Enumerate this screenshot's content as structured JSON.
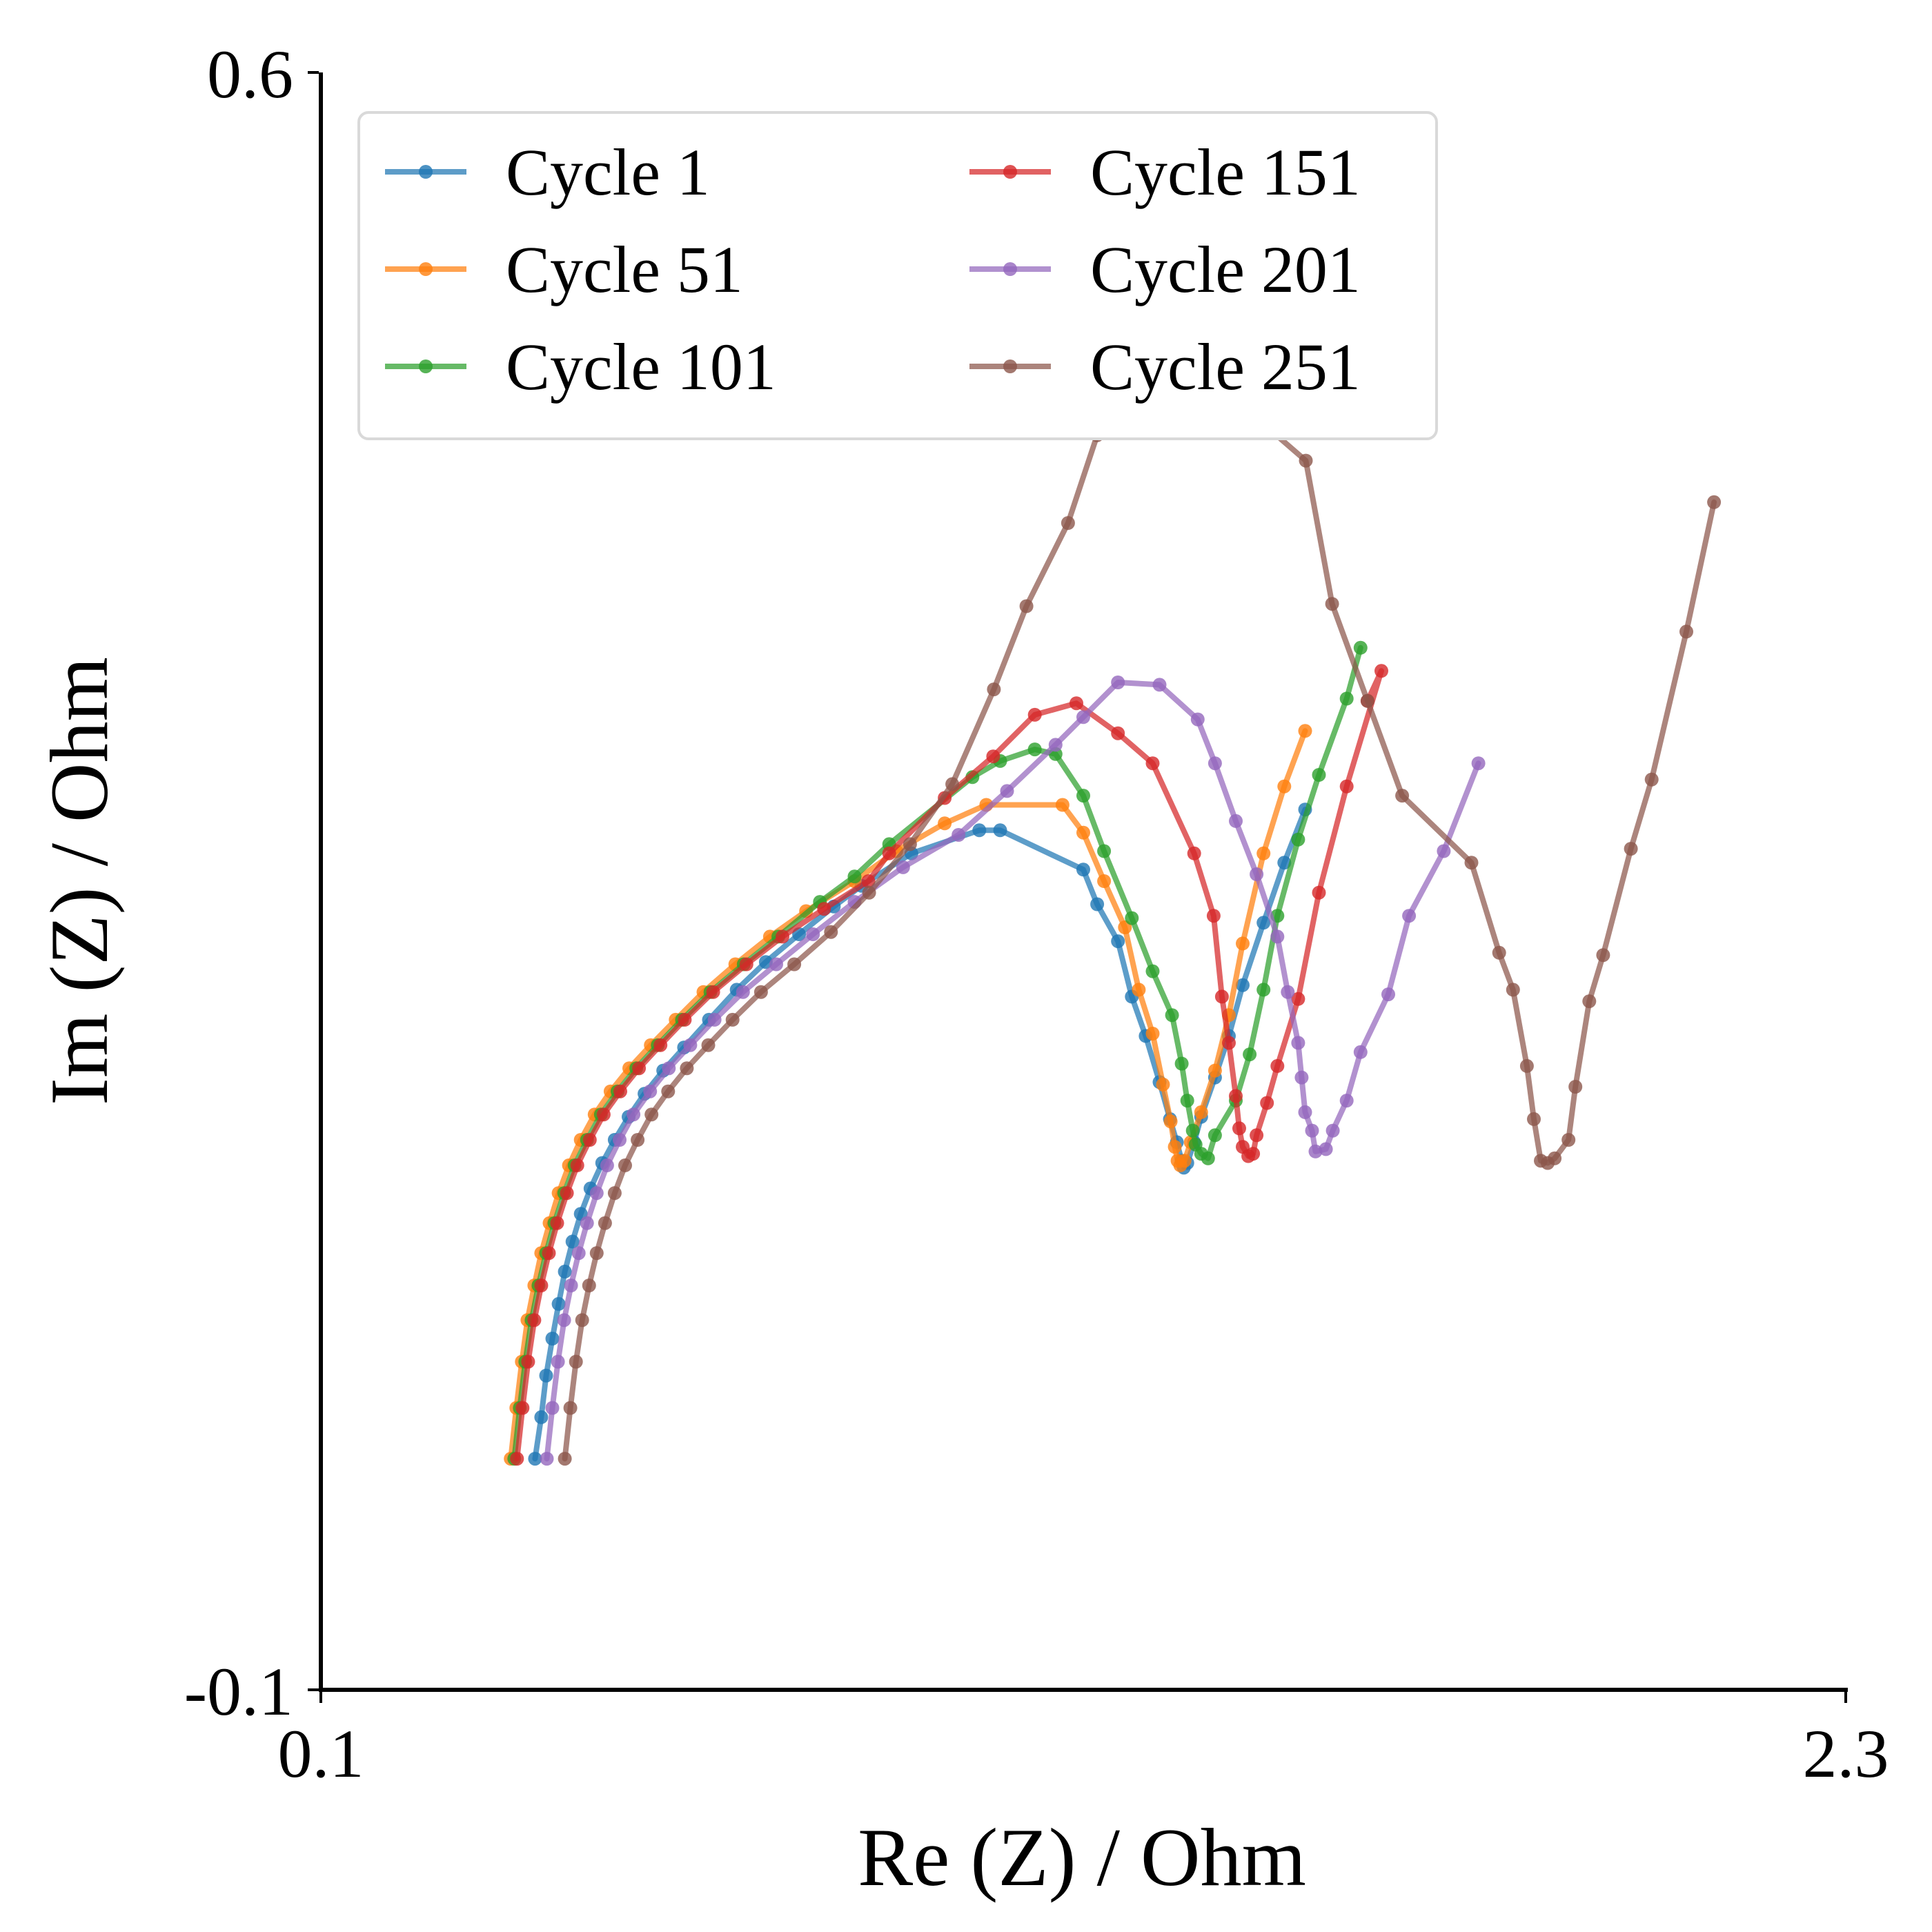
{
  "chart_data": {
    "type": "line",
    "title": "",
    "xlabel": "Re (Z) / Ohm",
    "ylabel": "Im (Z) / Ohm",
    "xlim": [
      0.1,
      2.3
    ],
    "ylim": [
      -0.1,
      0.6
    ],
    "x_ticks": [
      "0.1",
      "2.3"
    ],
    "y_ticks": [
      "-0.1",
      "0.6"
    ],
    "grid": false,
    "legend": {
      "placement": "top-left",
      "columns": 2
    },
    "series": [
      {
        "name": "Cycle 1",
        "color": "#1f77b4",
        "x": [
          0.409,
          0.418,
          0.425,
          0.434,
          0.443,
          0.452,
          0.463,
          0.475,
          0.489,
          0.506,
          0.524,
          0.544,
          0.567,
          0.594,
          0.624,
          0.66,
          0.7,
          0.742,
          0.79,
          0.84,
          0.88,
          0.952,
          1.05,
          1.08,
          1.2,
          1.22,
          1.25,
          1.27,
          1.29,
          1.31,
          1.325,
          1.335,
          1.342,
          1.345,
          1.35,
          1.36,
          1.37,
          1.39,
          1.41,
          1.43,
          1.46,
          1.49,
          1.52
        ],
        "y": [
          0.0,
          0.018,
          0.036,
          0.052,
          0.067,
          0.081,
          0.094,
          0.106,
          0.117,
          0.128,
          0.138,
          0.148,
          0.158,
          0.168,
          0.178,
          0.19,
          0.203,
          0.215,
          0.227,
          0.239,
          0.248,
          0.262,
          0.272,
          0.272,
          0.255,
          0.24,
          0.224,
          0.2,
          0.183,
          0.163,
          0.147,
          0.137,
          0.129,
          0.126,
          0.128,
          0.137,
          0.148,
          0.165,
          0.183,
          0.205,
          0.232,
          0.258,
          0.281
        ]
      },
      {
        "name": "Cycle 51",
        "color": "#ff7f0e",
        "x": [
          0.374,
          0.382,
          0.39,
          0.398,
          0.408,
          0.418,
          0.43,
          0.443,
          0.458,
          0.475,
          0.495,
          0.518,
          0.545,
          0.576,
          0.612,
          0.652,
          0.698,
          0.748,
          0.8,
          0.87,
          0.93,
          1.0,
          1.06,
          1.17,
          1.2,
          1.23,
          1.26,
          1.28,
          1.3,
          1.315,
          1.326,
          1.332,
          1.336,
          1.34,
          1.346,
          1.355,
          1.37,
          1.39,
          1.41,
          1.43,
          1.46,
          1.49,
          1.52
        ],
        "y": [
          0.0,
          0.022,
          0.042,
          0.06,
          0.075,
          0.089,
          0.102,
          0.115,
          0.127,
          0.138,
          0.149,
          0.159,
          0.169,
          0.179,
          0.19,
          0.202,
          0.214,
          0.226,
          0.237,
          0.25,
          0.263,
          0.275,
          0.283,
          0.283,
          0.271,
          0.25,
          0.23,
          0.203,
          0.184,
          0.162,
          0.146,
          0.135,
          0.129,
          0.127,
          0.129,
          0.137,
          0.15,
          0.168,
          0.192,
          0.223,
          0.262,
          0.291,
          0.315
        ]
      },
      {
        "name": "Cycle 101",
        "color": "#2ca02c",
        "x": [
          0.379,
          0.387,
          0.395,
          0.404,
          0.414,
          0.425,
          0.437,
          0.451,
          0.466,
          0.484,
          0.504,
          0.528,
          0.555,
          0.586,
          0.621,
          0.662,
          0.71,
          0.76,
          0.82,
          0.87,
          0.92,
          1.04,
          1.08,
          1.13,
          1.16,
          1.2,
          1.23,
          1.27,
          1.3,
          1.328,
          1.342,
          1.35,
          1.358,
          1.362,
          1.37,
          1.38,
          1.39,
          1.42,
          1.44,
          1.46,
          1.48,
          1.51,
          1.54,
          1.58,
          1.6
        ],
        "y": [
          0.0,
          0.022,
          0.042,
          0.06,
          0.075,
          0.089,
          0.102,
          0.115,
          0.127,
          0.138,
          0.149,
          0.159,
          0.169,
          0.179,
          0.19,
          0.202,
          0.214,
          0.226,
          0.241,
          0.252,
          0.266,
          0.295,
          0.302,
          0.307,
          0.305,
          0.287,
          0.263,
          0.234,
          0.211,
          0.192,
          0.171,
          0.155,
          0.142,
          0.136,
          0.132,
          0.13,
          0.14,
          0.155,
          0.175,
          0.203,
          0.235,
          0.268,
          0.296,
          0.329,
          0.351
        ]
      },
      {
        "name": "Cycle 151",
        "color": "#d62728",
        "x": [
          0.383,
          0.391,
          0.399,
          0.408,
          0.418,
          0.429,
          0.441,
          0.455,
          0.47,
          0.488,
          0.508,
          0.532,
          0.559,
          0.59,
          0.625,
          0.666,
          0.714,
          0.766,
          0.826,
          0.89,
          0.92,
          1.0,
          1.07,
          1.13,
          1.19,
          1.25,
          1.3,
          1.36,
          1.388,
          1.4,
          1.41,
          1.42,
          1.425,
          1.43,
          1.438,
          1.445,
          1.45,
          1.465,
          1.48,
          1.51,
          1.54,
          1.58,
          1.63,
          1.61
        ],
        "y": [
          0.0,
          0.022,
          0.042,
          0.06,
          0.075,
          0.089,
          0.102,
          0.115,
          0.127,
          0.138,
          0.149,
          0.159,
          0.169,
          0.179,
          0.19,
          0.202,
          0.214,
          0.226,
          0.238,
          0.25,
          0.262,
          0.286,
          0.304,
          0.322,
          0.327,
          0.314,
          0.301,
          0.262,
          0.235,
          0.2,
          0.18,
          0.157,
          0.143,
          0.135,
          0.131,
          0.132,
          0.14,
          0.154,
          0.17,
          0.199,
          0.245,
          0.291,
          0.341,
          0.328
        ]
      },
      {
        "name": "Cycle 201",
        "color": "#9467bd",
        "x": [
          0.426,
          0.434,
          0.442,
          0.451,
          0.461,
          0.472,
          0.484,
          0.498,
          0.513,
          0.531,
          0.551,
          0.575,
          0.602,
          0.633,
          0.668,
          0.709,
          0.757,
          0.81,
          0.87,
          0.94,
          1.02,
          1.09,
          1.16,
          1.2,
          1.25,
          1.31,
          1.365,
          1.39,
          1.42,
          1.45,
          1.48,
          1.495,
          1.51,
          1.515,
          1.52,
          1.53,
          1.535,
          1.55,
          1.56,
          1.58,
          1.6,
          1.64,
          1.67,
          1.72,
          1.77
        ],
        "y": [
          0.0,
          0.022,
          0.042,
          0.06,
          0.075,
          0.089,
          0.102,
          0.115,
          0.127,
          0.138,
          0.149,
          0.159,
          0.169,
          0.179,
          0.19,
          0.202,
          0.214,
          0.227,
          0.241,
          0.256,
          0.27,
          0.289,
          0.309,
          0.321,
          0.336,
          0.335,
          0.32,
          0.301,
          0.276,
          0.253,
          0.226,
          0.202,
          0.18,
          0.165,
          0.15,
          0.142,
          0.133,
          0.134,
          0.142,
          0.155,
          0.176,
          0.201,
          0.235,
          0.263,
          0.301
        ]
      },
      {
        "name": "Cycle 251",
        "color": "#8c564b",
        "x": [
          0.452,
          0.46,
          0.468,
          0.477,
          0.487,
          0.498,
          0.51,
          0.524,
          0.539,
          0.557,
          0.577,
          0.601,
          0.628,
          0.659,
          0.694,
          0.735,
          0.783,
          0.836,
          0.891,
          0.95,
          1.011,
          1.071,
          1.118,
          1.178,
          1.22,
          1.298,
          1.392,
          1.444,
          1.521,
          1.559,
          1.61,
          1.66,
          1.76,
          1.8,
          1.82,
          1.84,
          1.85,
          1.86,
          1.87,
          1.88,
          1.9,
          1.91,
          1.93,
          1.95,
          1.99,
          2.02,
          2.07,
          2.11
        ],
        "y": [
          0.0,
          0.022,
          0.042,
          0.06,
          0.075,
          0.089,
          0.102,
          0.115,
          0.127,
          0.138,
          0.149,
          0.159,
          0.169,
          0.179,
          0.19,
          0.202,
          0.214,
          0.228,
          0.245,
          0.266,
          0.292,
          0.333,
          0.369,
          0.405,
          0.443,
          0.452,
          0.459,
          0.452,
          0.432,
          0.37,
          0.328,
          0.287,
          0.258,
          0.219,
          0.203,
          0.17,
          0.147,
          0.129,
          0.128,
          0.13,
          0.138,
          0.161,
          0.198,
          0.218,
          0.264,
          0.294,
          0.358,
          0.414
        ]
      }
    ]
  }
}
